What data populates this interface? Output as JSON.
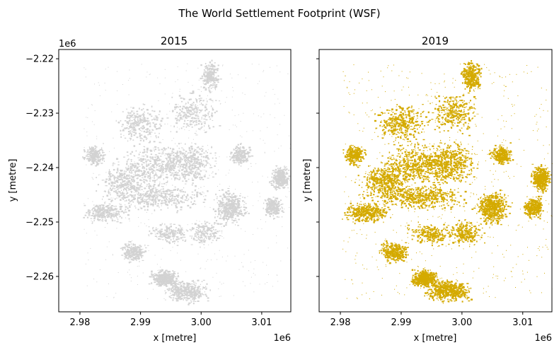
{
  "figure": {
    "suptitle": "The World Settlement Footprint (WSF)"
  },
  "chart_data": [
    {
      "type": "heatmap",
      "title": "2015",
      "xlabel": "x [metre]",
      "ylabel": "y [metre]",
      "x_offset_label": "1e6",
      "y_offset_label": "1e6",
      "xlim": [
        2.9765,
        3.0148
      ],
      "ylim": [
        -2.2665,
        -2.2183
      ],
      "xticks": [
        2.98,
        2.99,
        3.0,
        3.01
      ],
      "xtick_labels": [
        "2.98",
        "2.99",
        "3.00",
        "3.01"
      ],
      "yticks": [
        -2.22,
        -2.23,
        -2.24,
        -2.25,
        -2.26
      ],
      "ytick_labels": [
        "−2.22",
        "−2.23",
        "−2.24",
        "−2.25",
        "−2.26"
      ],
      "show_ytick_labels": true,
      "color": "#d3d3d3",
      "density": 0.8
    },
    {
      "type": "heatmap",
      "title": "2019",
      "xlabel": "x [metre]",
      "ylabel": "y [metre]",
      "x_offset_label": "1e6",
      "y_offset_label": "",
      "xlim": [
        2.9765,
        3.0148
      ],
      "ylim": [
        -2.2665,
        -2.2183
      ],
      "xticks": [
        2.98,
        2.99,
        3.0,
        3.01
      ],
      "xtick_labels": [
        "2.98",
        "2.99",
        "3.00",
        "3.01"
      ],
      "yticks": [
        -2.22,
        -2.23,
        -2.24,
        -2.25,
        -2.26
      ],
      "ytick_labels": [
        "",
        "",
        "",
        "",
        ""
      ],
      "show_ytick_labels": false,
      "color": "#d4aa00",
      "density": 1.0
    }
  ]
}
